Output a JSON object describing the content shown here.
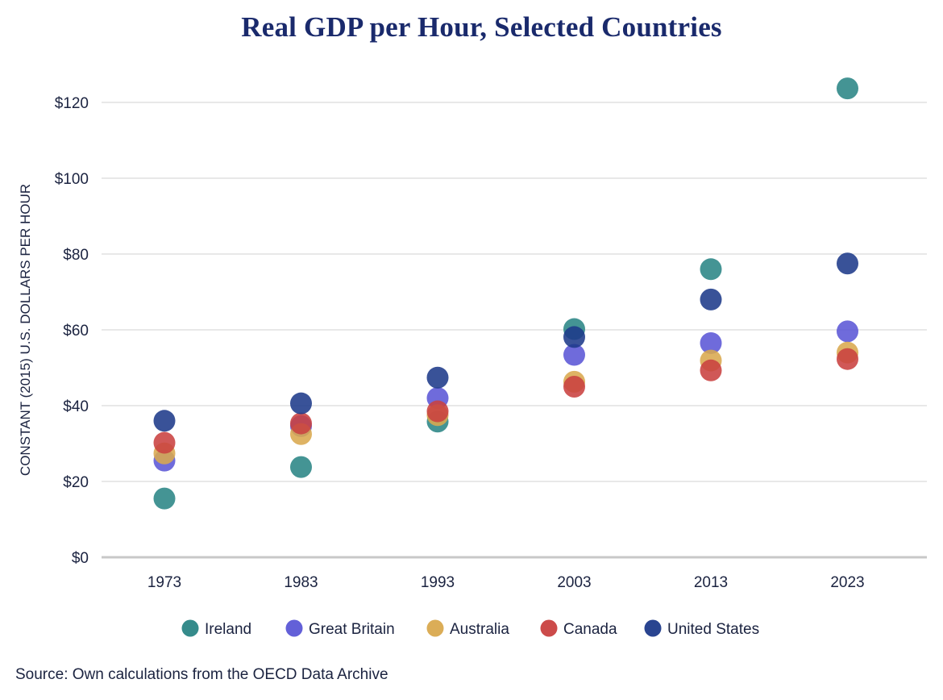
{
  "chart_data": {
    "type": "scatter",
    "title": "Real GDP per Hour, Selected Countries",
    "ylabel": "CONSTANT (2015) U.S. DOLLARS PER HOUR",
    "xlabel": "",
    "ylim": [
      0,
      120
    ],
    "yticks": [
      0,
      20,
      40,
      60,
      80,
      100,
      120
    ],
    "ytick_labels": [
      "$0",
      "$20",
      "$40",
      "$60",
      "$80",
      "$100",
      "$120"
    ],
    "categories": [
      "1973",
      "1983",
      "1993",
      "2003",
      "2013",
      "2023"
    ],
    "grid": true,
    "legend_position": "bottom",
    "series": [
      {
        "name": "Ireland",
        "color": "#2a8585",
        "values": [
          15.5,
          23.8,
          35.8,
          60.2,
          76.0,
          123.7
        ]
      },
      {
        "name": "Great Britain",
        "color": "#5b57d6",
        "values": [
          25.5,
          34.6,
          42.0,
          53.4,
          56.5,
          59.6
        ]
      },
      {
        "name": "Australia",
        "color": "#d9a94e",
        "values": [
          27.4,
          32.5,
          37.5,
          46.3,
          51.9,
          54.0
        ]
      },
      {
        "name": "Canada",
        "color": "#c94140",
        "values": [
          30.2,
          35.3,
          38.5,
          45.0,
          49.3,
          52.3
        ]
      },
      {
        "name": "United States",
        "color": "#1e3a8a",
        "values": [
          36.0,
          40.6,
          47.4,
          58.1,
          68.0,
          77.5
        ]
      }
    ]
  },
  "source": "Source: Own calculations from the OECD Data Archive"
}
